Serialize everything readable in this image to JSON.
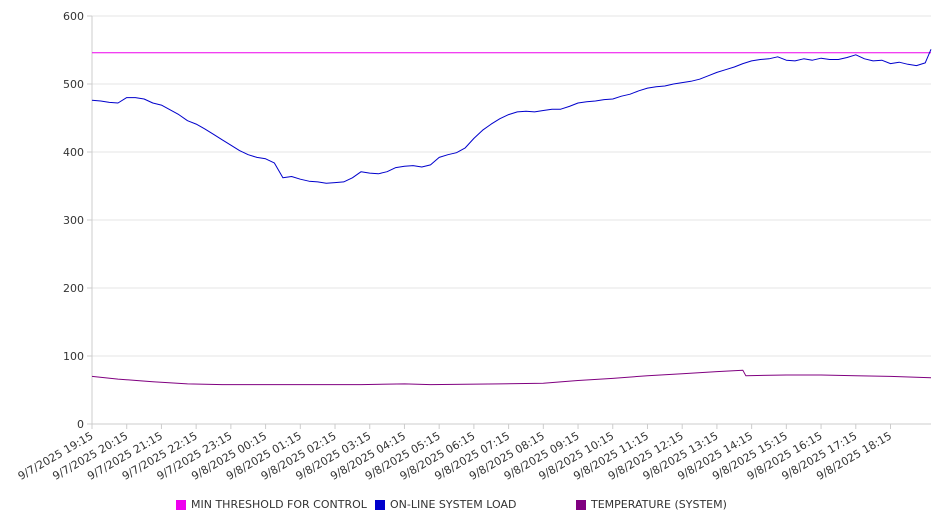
{
  "chart_data": {
    "type": "line",
    "title": "",
    "xlabel": "",
    "ylabel": "",
    "ylim": [
      0,
      600
    ],
    "yticks": [
      0,
      100,
      200,
      300,
      400,
      500,
      600
    ],
    "grid": true,
    "legend_position": "bottom",
    "x_tick_labels": [
      "9/7/2025 19:15",
      "9/7/2025 20:15",
      "9/7/2025 21:15",
      "9/7/2025 22:15",
      "9/7/2025 23:15",
      "9/8/2025 00:15",
      "9/8/2025 01:15",
      "9/8/2025 02:15",
      "9/8/2025 03:15",
      "9/8/2025 04:15",
      "9/8/2025 05:15",
      "9/8/2025 06:15",
      "9/8/2025 07:15",
      "9/8/2025 08:15",
      "9/8/2025 09:15",
      "9/8/2025 10:15",
      "9/8/2025 11:15",
      "9/8/2025 12:15",
      "9/8/2025 13:15",
      "9/8/2025 14:15",
      "9/8/2025 15:15",
      "9/8/2025 16:15",
      "9/8/2025 17:15",
      "9/8/2025 18:15"
    ],
    "x_time_range": [
      "9/7/2025 19:15",
      "9/8/2025 19:25"
    ],
    "series": [
      {
        "name": "MIN THRESHOLD FOR CONTROL",
        "color": "#ee00ee",
        "points": [
          [
            "9/7/2025 19:15",
            546
          ],
          [
            "9/8/2025 19:25",
            546
          ]
        ]
      },
      {
        "name": "ON-LINE SYSTEM LOAD",
        "color": "#0000cc",
        "points": [
          [
            "9/7/2025 19:15",
            476
          ],
          [
            "9/7/2025 19:30",
            475
          ],
          [
            "9/7/2025 19:45",
            473
          ],
          [
            "9/7/2025 20:00",
            472
          ],
          [
            "9/7/2025 20:15",
            480
          ],
          [
            "9/7/2025 20:30",
            480
          ],
          [
            "9/7/2025 20:45",
            478
          ],
          [
            "9/7/2025 21:00",
            472
          ],
          [
            "9/7/2025 21:15",
            469
          ],
          [
            "9/7/2025 21:30",
            462
          ],
          [
            "9/7/2025 21:45",
            455
          ],
          [
            "9/7/2025 22:00",
            446
          ],
          [
            "9/7/2025 22:15",
            441
          ],
          [
            "9/7/2025 22:30",
            434
          ],
          [
            "9/7/2025 22:45",
            426
          ],
          [
            "9/7/2025 23:00",
            418
          ],
          [
            "9/7/2025 23:15",
            410
          ],
          [
            "9/7/2025 23:30",
            402
          ],
          [
            "9/7/2025 23:45",
            396
          ],
          [
            "9/8/2025 00:00",
            392
          ],
          [
            "9/8/2025 00:15",
            390
          ],
          [
            "9/8/2025 00:30",
            384
          ],
          [
            "9/8/2025 00:45",
            362
          ],
          [
            "9/8/2025 01:00",
            364
          ],
          [
            "9/8/2025 01:15",
            360
          ],
          [
            "9/8/2025 01:30",
            357
          ],
          [
            "9/8/2025 01:45",
            356
          ],
          [
            "9/8/2025 02:00",
            354
          ],
          [
            "9/8/2025 02:15",
            355
          ],
          [
            "9/8/2025 02:30",
            356
          ],
          [
            "9/8/2025 02:45",
            362
          ],
          [
            "9/8/2025 03:00",
            371
          ],
          [
            "9/8/2025 03:15",
            369
          ],
          [
            "9/8/2025 03:30",
            368
          ],
          [
            "9/8/2025 03:45",
            371
          ],
          [
            "9/8/2025 04:00",
            377
          ],
          [
            "9/8/2025 04:15",
            379
          ],
          [
            "9/8/2025 04:30",
            380
          ],
          [
            "9/8/2025 04:45",
            378
          ],
          [
            "9/8/2025 05:00",
            381
          ],
          [
            "9/8/2025 05:15",
            392
          ],
          [
            "9/8/2025 05:30",
            396
          ],
          [
            "9/8/2025 05:45",
            399
          ],
          [
            "9/8/2025 06:00",
            406
          ],
          [
            "9/8/2025 06:15",
            420
          ],
          [
            "9/8/2025 06:30",
            432
          ],
          [
            "9/8/2025 06:45",
            441
          ],
          [
            "9/8/2025 07:00",
            449
          ],
          [
            "9/8/2025 07:15",
            455
          ],
          [
            "9/8/2025 07:30",
            459
          ],
          [
            "9/8/2025 07:45",
            460
          ],
          [
            "9/8/2025 08:00",
            459
          ],
          [
            "9/8/2025 08:15",
            461
          ],
          [
            "9/8/2025 08:30",
            463
          ],
          [
            "9/8/2025 08:45",
            463
          ],
          [
            "9/8/2025 09:00",
            467
          ],
          [
            "9/8/2025 09:15",
            472
          ],
          [
            "9/8/2025 09:30",
            474
          ],
          [
            "9/8/2025 09:45",
            475
          ],
          [
            "9/8/2025 10:00",
            477
          ],
          [
            "9/8/2025 10:15",
            478
          ],
          [
            "9/8/2025 10:30",
            482
          ],
          [
            "9/8/2025 10:45",
            485
          ],
          [
            "9/8/2025 11:00",
            490
          ],
          [
            "9/8/2025 11:15",
            494
          ],
          [
            "9/8/2025 11:30",
            496
          ],
          [
            "9/8/2025 11:45",
            497
          ],
          [
            "9/8/2025 12:00",
            500
          ],
          [
            "9/8/2025 12:15",
            502
          ],
          [
            "9/8/2025 12:30",
            504
          ],
          [
            "9/8/2025 12:45",
            507
          ],
          [
            "9/8/2025 13:00",
            512
          ],
          [
            "9/8/2025 13:15",
            517
          ],
          [
            "9/8/2025 13:30",
            521
          ],
          [
            "9/8/2025 13:45",
            525
          ],
          [
            "9/8/2025 14:00",
            530
          ],
          [
            "9/8/2025 14:15",
            534
          ],
          [
            "9/8/2025 14:30",
            536
          ],
          [
            "9/8/2025 14:45",
            537
          ],
          [
            "9/8/2025 15:00",
            540
          ],
          [
            "9/8/2025 15:15",
            535
          ],
          [
            "9/8/2025 15:30",
            534
          ],
          [
            "9/8/2025 15:45",
            537
          ],
          [
            "9/8/2025 16:00",
            535
          ],
          [
            "9/8/2025 16:15",
            538
          ],
          [
            "9/8/2025 16:30",
            536
          ],
          [
            "9/8/2025 16:45",
            536
          ],
          [
            "9/8/2025 17:00",
            539
          ],
          [
            "9/8/2025 17:15",
            543
          ],
          [
            "9/8/2025 17:30",
            537
          ],
          [
            "9/8/2025 17:45",
            534
          ],
          [
            "9/8/2025 18:00",
            535
          ],
          [
            "9/8/2025 18:15",
            530
          ],
          [
            "9/8/2025 18:30",
            532
          ],
          [
            "9/8/2025 18:45",
            529
          ],
          [
            "9/8/2025 19:00",
            527
          ],
          [
            "9/8/2025 19:15",
            531
          ],
          [
            "9/8/2025 19:25",
            551
          ]
        ]
      },
      {
        "name": "TEMPERATURE (SYSTEM)",
        "color": "#800080",
        "points": [
          [
            "9/7/2025 19:15",
            70
          ],
          [
            "9/7/2025 20:00",
            66
          ],
          [
            "9/7/2025 21:00",
            62
          ],
          [
            "9/7/2025 22:00",
            59
          ],
          [
            "9/7/2025 23:00",
            58
          ],
          [
            "9/8/2025 01:00",
            58
          ],
          [
            "9/8/2025 03:00",
            58
          ],
          [
            "9/8/2025 04:15",
            59
          ],
          [
            "9/8/2025 05:00",
            58
          ],
          [
            "9/8/2025 07:00",
            59
          ],
          [
            "9/8/2025 08:15",
            60
          ],
          [
            "9/8/2025 09:15",
            64
          ],
          [
            "9/8/2025 10:15",
            67
          ],
          [
            "9/8/2025 11:15",
            71
          ],
          [
            "9/8/2025 12:15",
            74
          ],
          [
            "9/8/2025 13:15",
            77
          ],
          [
            "9/8/2025 14:00",
            79
          ],
          [
            "9/8/2025 14:05",
            71
          ],
          [
            "9/8/2025 15:15",
            72
          ],
          [
            "9/8/2025 16:15",
            72
          ],
          [
            "9/8/2025 17:15",
            71
          ],
          [
            "9/8/2025 18:15",
            70
          ],
          [
            "9/8/2025 19:25",
            68
          ]
        ]
      }
    ]
  }
}
